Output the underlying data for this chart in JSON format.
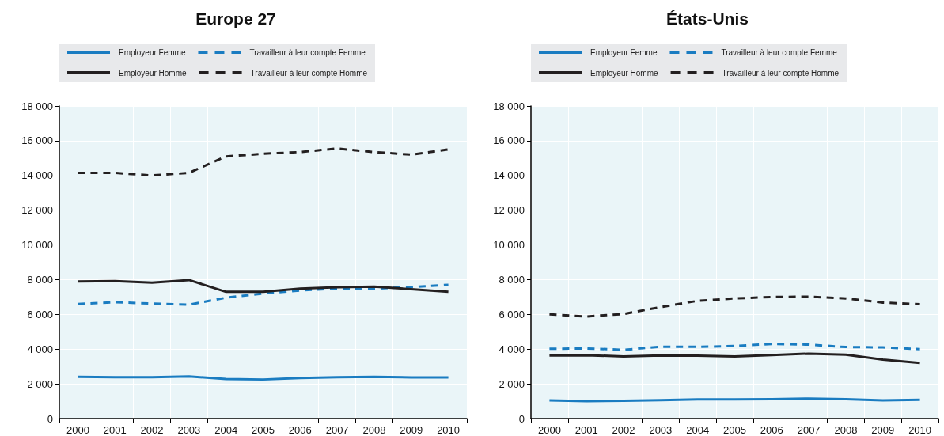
{
  "chart_data": [
    {
      "type": "line",
      "title": "Europe 27",
      "categories": [
        "2000",
        "2001",
        "2002",
        "2003",
        "2004",
        "2005",
        "2006",
        "2007",
        "2008",
        "2009",
        "2010"
      ],
      "series": [
        {
          "name": "Employeur Femme",
          "color": "#1a7cc1",
          "line_style": "solid",
          "values": [
            2400,
            2380,
            2380,
            2430,
            2280,
            2250,
            2330,
            2380,
            2400,
            2370,
            2370
          ]
        },
        {
          "name": "Travailleur à leur compte Femme",
          "color": "#1a7cc1",
          "line_style": "dashed",
          "values": [
            6600,
            6700,
            6620,
            6560,
            6960,
            7200,
            7380,
            7480,
            7480,
            7580,
            7700
          ]
        },
        {
          "name": "Employeur Homme",
          "color": "#231f20",
          "line_style": "solid",
          "values": [
            7900,
            7920,
            7830,
            7980,
            7300,
            7300,
            7480,
            7560,
            7600,
            7450,
            7300
          ]
        },
        {
          "name": "Travailleur à leur compte Homme",
          "color": "#231f20",
          "line_style": "dashed",
          "values": [
            14150,
            14150,
            14000,
            14150,
            15100,
            15250,
            15350,
            15550,
            15350,
            15200,
            15500
          ]
        }
      ],
      "ylim": [
        0,
        18000
      ],
      "yticks": [
        0,
        {
          "value": 2000,
          "label": "2 000"
        },
        {
          "value": 4000,
          "label": "4 000"
        },
        {
          "value": 6000,
          "label": "6 000"
        },
        {
          "value": 8000,
          "label": "8 000"
        },
        {
          "value": 10000,
          "label": "10 000"
        },
        {
          "value": 12000,
          "label": "12 000"
        },
        {
          "value": 14000,
          "label": "14 000"
        },
        {
          "value": 16000,
          "label": "16 000"
        },
        {
          "value": 18000,
          "label": "18 000"
        }
      ],
      "grid": true,
      "legend": "top",
      "marker": "none"
    },
    {
      "type": "line",
      "title": "États-Unis",
      "categories": [
        "2000",
        "2001",
        "2002",
        "2003",
        "2004",
        "2005",
        "2006",
        "2007",
        "2008",
        "2009",
        "2010"
      ],
      "series": [
        {
          "name": "Employeur Femme",
          "color": "#1a7cc1",
          "line_style": "solid",
          "values": [
            1050,
            1000,
            1020,
            1060,
            1100,
            1100,
            1120,
            1150,
            1120,
            1050,
            1080
          ]
        },
        {
          "name": "Travailleur à leur compte Femme",
          "color": "#1a7cc1",
          "line_style": "dashed",
          "values": [
            4020,
            4040,
            3960,
            4140,
            4130,
            4180,
            4300,
            4260,
            4120,
            4100,
            4000
          ]
        },
        {
          "name": "Employeur Homme",
          "color": "#231f20",
          "line_style": "solid",
          "values": [
            3630,
            3650,
            3580,
            3630,
            3620,
            3580,
            3660,
            3740,
            3680,
            3400,
            3200
          ]
        },
        {
          "name": "Travailleur à leur compte Homme",
          "color": "#231f20",
          "line_style": "dashed",
          "values": [
            6000,
            5880,
            6020,
            6420,
            6780,
            6920,
            7000,
            7020,
            6920,
            6680,
            6580
          ]
        }
      ],
      "ylim": [
        0,
        18000
      ],
      "yticks": [
        0,
        {
          "value": 2000,
          "label": "2 000"
        },
        {
          "value": 4000,
          "label": "4 000"
        },
        {
          "value": 6000,
          "label": "6 000"
        },
        {
          "value": 8000,
          "label": "8 000"
        },
        {
          "value": 10000,
          "label": "10 000"
        },
        {
          "value": 12000,
          "label": "12 000"
        },
        {
          "value": 14000,
          "label": "14 000"
        },
        {
          "value": 16000,
          "label": "16 000"
        },
        {
          "value": 18000,
          "label": "18 000"
        }
      ],
      "grid": true,
      "legend": "top",
      "marker": "none"
    }
  ]
}
